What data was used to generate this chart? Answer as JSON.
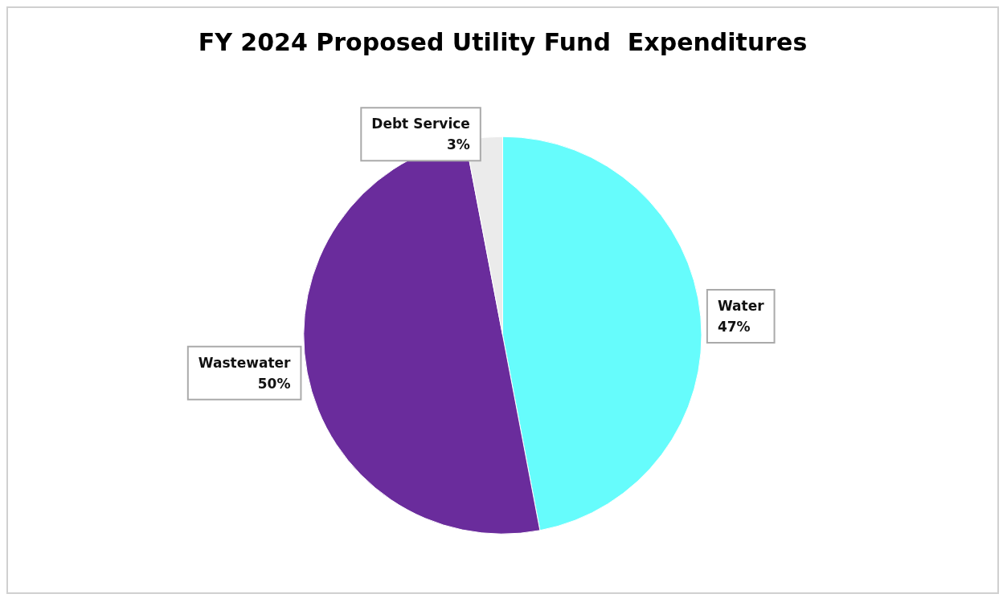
{
  "chart_data": {
    "type": "pie",
    "title": "FY 2024 Proposed Utility Fund  Expenditures",
    "categories": [
      "Water",
      "Wastewater",
      "Debt Service"
    ],
    "values": [
      47,
      50,
      3
    ],
    "colors": [
      "#66fcfc",
      "#6a2c9c",
      "#ebebeb"
    ],
    "value_labels": [
      "47%",
      "50%",
      "3%"
    ],
    "legend": false
  }
}
